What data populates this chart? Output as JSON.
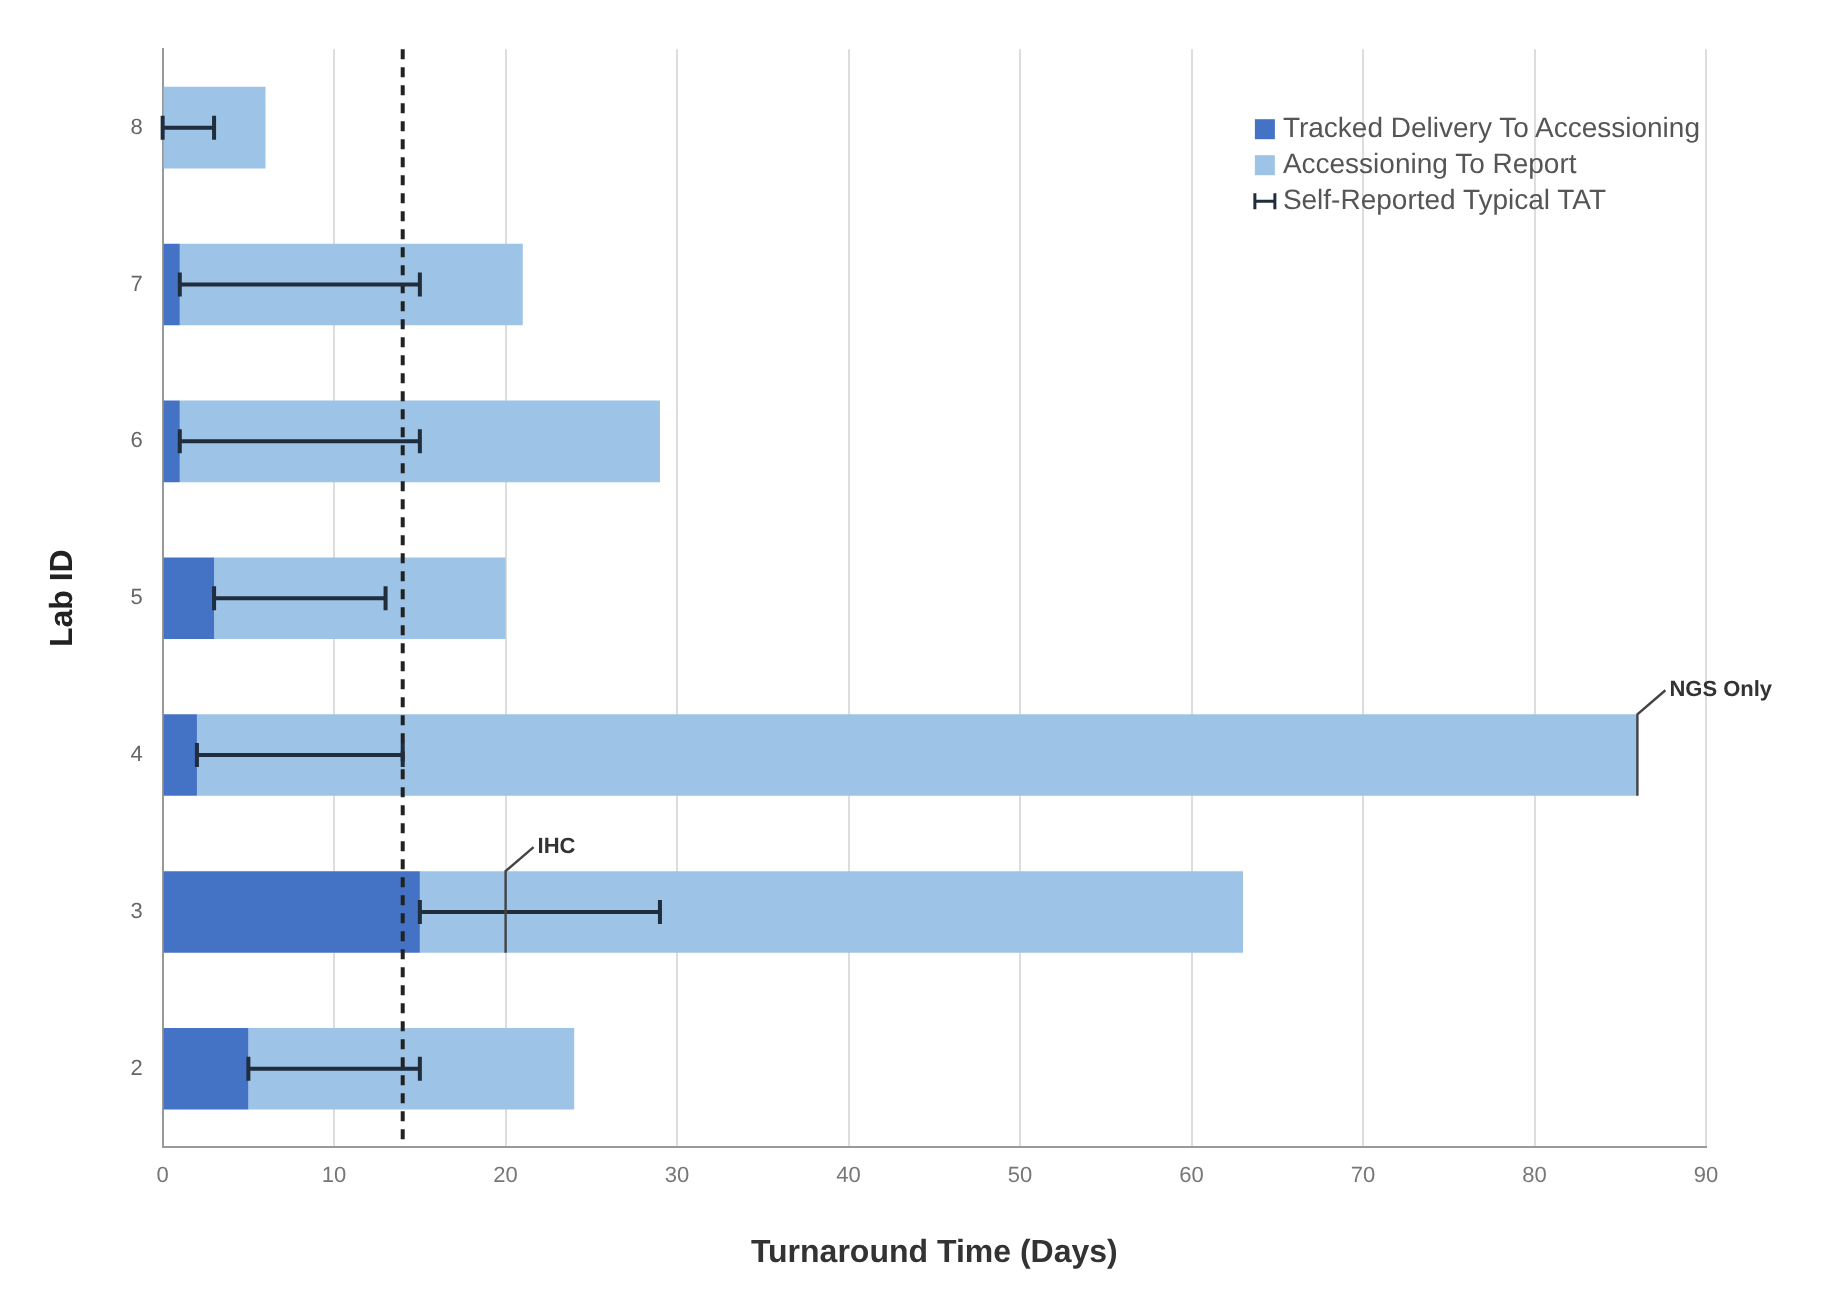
{
  "chart_data": {
    "type": "bar",
    "orientation": "horizontal",
    "stacked": true,
    "xlabel": "Turnaround Time (Days)",
    "ylabel": "Lab ID",
    "categories": [
      "8",
      "7",
      "6",
      "5",
      "4",
      "3",
      "2"
    ],
    "series": [
      {
        "name": "Tracked Delivery To Accessioning",
        "color": "#4472c4",
        "values": [
          0,
          1,
          1,
          3,
          2,
          15,
          5
        ],
        "errors": [
          [
            0,
            3
          ],
          [
            1,
            15
          ],
          [
            1,
            15
          ],
          [
            3,
            13
          ],
          [
            2,
            14
          ],
          [
            15,
            29
          ],
          [
            5,
            15
          ]
        ]
      },
      {
        "name": "Accessioning To Report",
        "color": "#9dc3e6",
        "values": [
          6,
          20,
          28,
          17,
          84,
          48,
          19
        ]
      }
    ],
    "xlim": [
      0,
      90
    ],
    "xticks": [
      0,
      10,
      20,
      30,
      40,
      50,
      60,
      70,
      80,
      90
    ],
    "grid": "x",
    "legend": "top right",
    "ref_lines": [
      {
        "axis": "x",
        "value": 14,
        "color": "#222222",
        "line_style": "dashed"
      }
    ],
    "annotations": [
      "Self-Reported Typical TAT",
      {
        "text": "IHC",
        "x": 20,
        "y": "3"
      },
      {
        "text": "NGS Only",
        "x": 86,
        "y": "4"
      }
    ]
  }
}
